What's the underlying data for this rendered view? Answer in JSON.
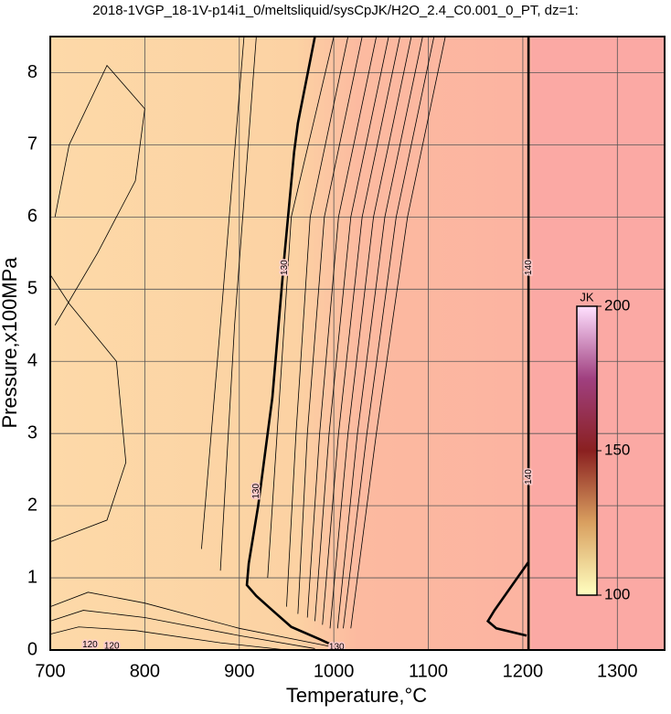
{
  "chart_data": {
    "type": "contour",
    "title": "2018-1VGP_18-1V-p14i1_0/meltsliquid/sysCpJK/H2O_2.4_C0.001_0_PT, dz=1:",
    "xlabel": "Temperature,°C",
    "ylabel": "Pressure,x100MPa",
    "xlim": [
      700,
      1350
    ],
    "ylim": [
      0,
      8.5
    ],
    "xticks": [
      700,
      800,
      900,
      1000,
      1100,
      1200,
      1300
    ],
    "yticks": [
      0,
      1,
      2,
      3,
      4,
      5,
      6,
      7,
      8
    ],
    "grid": true,
    "contours": [
      {
        "name": "130",
        "thick": true,
        "x": [
          980,
          962,
          958,
          948,
          935,
          920,
          910,
          908,
          918,
          935,
          955,
          985,
          1010
        ],
        "y": [
          8.5,
          7.3,
          6.9,
          5.5,
          3.5,
          2.0,
          1.2,
          0.9,
          0.75,
          0.55,
          0.32,
          0.15,
          0
        ]
      },
      {
        "name": "140",
        "thick": true,
        "x": [
          1206,
          1206
        ],
        "y": [
          0,
          8.5
        ]
      },
      {
        "name": "140",
        "thick": true,
        "x": [
          1206,
          1170,
          1163,
          1172,
          1204
        ],
        "y": [
          1.22,
          0.55,
          0.4,
          0.3,
          0.2
        ]
      },
      {
        "x": [
          860,
          880,
          905
        ],
        "y": [
          1.4,
          4.5,
          8.5
        ]
      },
      {
        "x": [
          880,
          895,
          918
        ],
        "y": [
          1.1,
          4.5,
          8.5
        ]
      },
      {
        "x": [
          930,
          940,
          955,
          1000
        ],
        "y": [
          1.0,
          3.0,
          6.0,
          8.5
        ]
      },
      {
        "x": [
          950,
          960,
          975,
          1015
        ],
        "y": [
          0.6,
          3.0,
          6.0,
          8.5
        ]
      },
      {
        "x": [
          962,
          972,
          990,
          1030
        ],
        "y": [
          0.5,
          3.0,
          6.0,
          8.5
        ]
      },
      {
        "x": [
          972,
          985,
          1005,
          1045
        ],
        "y": [
          0.45,
          3.0,
          6.0,
          8.5
        ]
      },
      {
        "x": [
          980,
          995,
          1018,
          1058
        ],
        "y": [
          0.4,
          3.0,
          6.0,
          8.5
        ]
      },
      {
        "x": [
          988,
          1005,
          1030,
          1070
        ],
        "y": [
          0.35,
          3.0,
          6.0,
          8.5
        ]
      },
      {
        "x": [
          996,
          1015,
          1042,
          1082
        ],
        "y": [
          0.3,
          3.0,
          6.0,
          8.5
        ]
      },
      {
        "x": [
          1004,
          1025,
          1054,
          1094
        ],
        "y": [
          0.3,
          3.0,
          6.0,
          8.5
        ]
      },
      {
        "x": [
          1010,
          1035,
          1066,
          1106
        ],
        "y": [
          0.3,
          3.0,
          6.0,
          8.5
        ]
      },
      {
        "x": [
          1018,
          1045,
          1078,
          1118
        ],
        "y": [
          0.3,
          3.0,
          6.0,
          8.5
        ]
      },
      {
        "x": [
          700,
          740,
          800,
          900,
          1000
        ],
        "y": [
          0.6,
          0.8,
          0.65,
          0.3,
          0.04
        ]
      },
      {
        "x": [
          700,
          735,
          800,
          900,
          980
        ],
        "y": [
          0.4,
          0.55,
          0.45,
          0.2,
          0.02
        ]
      },
      {
        "x": [
          700,
          730,
          790,
          880,
          950
        ],
        "y": [
          0.22,
          0.32,
          0.27,
          0.1,
          0
        ]
      },
      {
        "x": [
          705,
          750,
          790,
          800,
          760,
          720,
          705
        ],
        "y": [
          4.5,
          5.5,
          6.5,
          7.5,
          8.1,
          7.0,
          6.0
        ]
      },
      {
        "x": [
          700,
          760,
          780,
          770,
          720,
          700
        ],
        "y": [
          1.5,
          1.8,
          2.6,
          4.0,
          4.8,
          5.2
        ]
      }
    ],
    "annotations": [
      {
        "text": "130",
        "x": 948,
        "y": 5.3,
        "rotate": true
      },
      {
        "text": "130",
        "x": 918,
        "y": 2.2,
        "rotate": true
      },
      {
        "text": "140",
        "x": 1206,
        "y": 5.3,
        "rotate": true
      },
      {
        "text": "140",
        "x": 1206,
        "y": 2.4,
        "rotate": true
      },
      {
        "text": "120",
        "x": 742,
        "y": 0.07,
        "rotate": false
      },
      {
        "text": "120",
        "x": 765,
        "y": 0.05,
        "rotate": false
      },
      {
        "text": "130",
        "x": 1003,
        "y": 0.04,
        "rotate": false
      }
    ],
    "colorbar": {
      "label": "JK",
      "lim": [
        100,
        200
      ],
      "ticks": [
        100,
        150,
        200
      ]
    }
  }
}
